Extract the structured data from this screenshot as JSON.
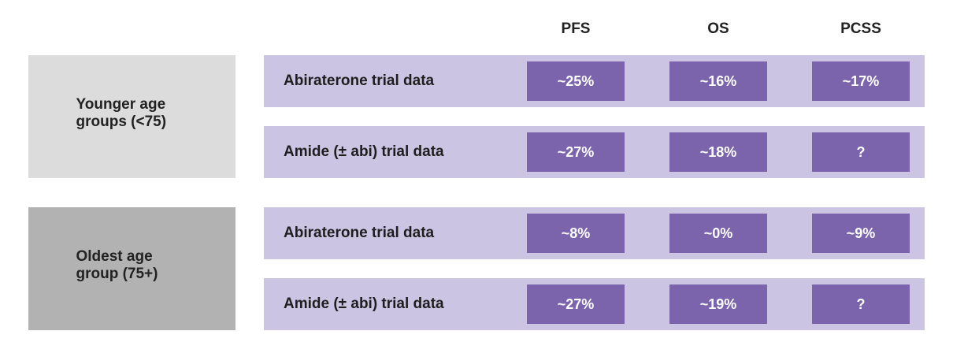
{
  "colors": {
    "row_bg": "#cbc5e3",
    "cell_bg": "#7b64ab",
    "younger_group_bg": "#dcdcdc",
    "oldest_group_bg": "#b2b2b2"
  },
  "columns": [
    "PFS",
    "OS",
    "PCSS"
  ],
  "groups": [
    {
      "label": "Younger age groups (<75)",
      "rows": [
        {
          "label": "Abiraterone trial data",
          "values": [
            "~25%",
            "~16%",
            "~17%"
          ]
        },
        {
          "label": "Amide (± abi) trial data",
          "values": [
            "~27%",
            "~18%",
            "?"
          ]
        }
      ]
    },
    {
      "label": "Oldest age group (75+)",
      "rows": [
        {
          "label": "Abiraterone trial data",
          "values": [
            "~8%",
            "~0%",
            "~9%"
          ]
        },
        {
          "label": "Amide (± abi) trial data",
          "values": [
            "~27%",
            "~19%",
            "?"
          ]
        }
      ]
    }
  ]
}
